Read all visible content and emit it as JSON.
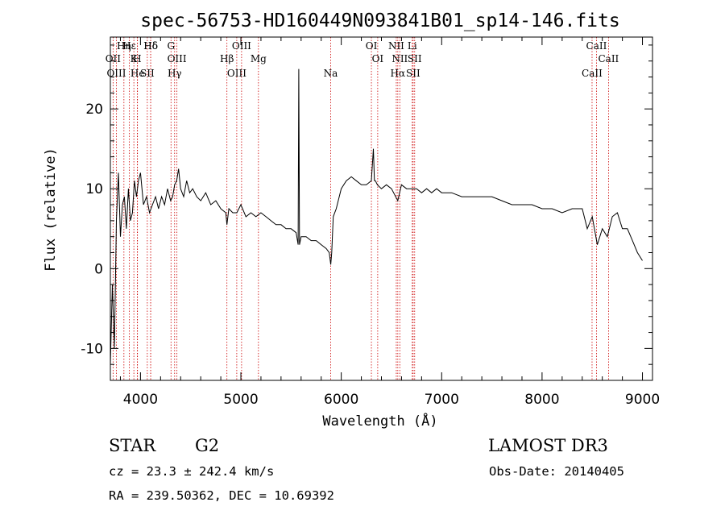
{
  "chart_data": {
    "type": "line",
    "title": "spec-56753-HD160449N093841B01_sp14-146.fits",
    "xlabel": "Wavelength (Å)",
    "ylabel": "Flux (relative)",
    "xlim": [
      3700,
      9100
    ],
    "ylim": [
      -14,
      29
    ],
    "x_ticks": [
      4000,
      5000,
      6000,
      7000,
      8000,
      9000
    ],
    "y_ticks": [
      -10,
      0,
      10,
      20
    ],
    "grid": false,
    "legend": "none",
    "colors": {
      "spectrum": "#000000",
      "line_markers": "#cc0000",
      "axes": "#000000"
    },
    "series": [
      {
        "x": [
          3700,
          3720,
          3740,
          3760,
          3780,
          3800,
          3820,
          3840,
          3860,
          3880,
          3900,
          3920,
          3940,
          3960,
          3980,
          4000,
          4030,
          4060,
          4090,
          4120,
          4150,
          4180,
          4210,
          4240,
          4270,
          4300,
          4320,
          4340,
          4360,
          4380,
          4400,
          4430,
          4460,
          4490,
          4520,
          4560,
          4600,
          4650,
          4700,
          4750,
          4800,
          4850,
          4861,
          4880,
          4920,
          4960,
          5000,
          5050,
          5100,
          5150,
          5200,
          5250,
          5300,
          5350,
          5400,
          5450,
          5500,
          5550,
          5570,
          5577,
          5584,
          5600,
          5650,
          5700,
          5750,
          5800,
          5850,
          5880,
          5895,
          5905,
          5920,
          5950,
          6000,
          6050,
          6100,
          6150,
          6200,
          6250,
          6300,
          6320,
          6330,
          6340,
          6360,
          6400,
          6450,
          6500,
          6563,
          6600,
          6650,
          6700,
          6750,
          6800,
          6850,
          6900,
          6950,
          7000,
          7100,
          7200,
          7300,
          7400,
          7500,
          7600,
          7700,
          7800,
          7900,
          8000,
          8100,
          8200,
          8300,
          8400,
          8450,
          8500,
          8550,
          8600,
          8650,
          8700,
          8750,
          8800,
          8850,
          8900,
          8950,
          9000
        ],
        "y": [
          -12,
          -2,
          -10,
          6,
          12,
          4,
          8,
          9,
          5,
          10,
          6,
          7,
          11,
          9,
          11,
          12,
          8,
          9,
          7,
          8,
          9,
          7.5,
          9,
          8,
          10,
          8.5,
          9,
          10.5,
          11,
          12.5,
          10,
          9,
          11,
          9.5,
          10,
          9,
          8.5,
          9.5,
          8,
          8.5,
          7.5,
          7,
          5.5,
          7.5,
          7,
          7,
          8,
          6.5,
          7,
          6.5,
          7,
          6.5,
          6,
          5.5,
          5.5,
          5,
          5,
          4.5,
          3,
          25,
          3,
          4,
          4,
          3.5,
          3.5,
          3,
          2.5,
          2,
          0.5,
          2,
          6.5,
          7.5,
          10,
          11,
          11.5,
          11,
          10.5,
          10.5,
          11,
          15,
          11,
          11,
          10.5,
          10,
          10.5,
          10,
          8.5,
          10.5,
          10,
          10,
          10,
          9.5,
          10,
          9.5,
          10,
          9.5,
          9.5,
          9,
          9,
          9,
          9,
          8.5,
          8,
          8,
          8,
          7.5,
          7.5,
          7,
          7.5,
          7.5,
          5,
          6.5,
          3,
          5,
          4,
          6.5,
          7,
          5,
          5,
          3.5,
          2,
          1
        ]
      }
    ],
    "line_markers": [
      {
        "label": "Hδ",
        "x": 4102
      },
      {
        "label": "OII",
        "x": 3727
      },
      {
        "label": "OIII",
        "x": 3760
      },
      {
        "label": "Hε",
        "x": 3889
      },
      {
        "label": "K",
        "x": 3934
      },
      {
        "label": "He",
        "x": 3970
      },
      {
        "label": "Hη",
        "x": 3835
      },
      {
        "label": "H",
        "x": 3968
      },
      {
        "label": "SII",
        "x": 4068
      },
      {
        "label": "Hδ",
        "x": 4102
      },
      {
        "label": "OIII",
        "x": 4363
      },
      {
        "label": "Hγ",
        "x": 4340
      },
      {
        "label": "G",
        "x": 4304
      },
      {
        "label": "Hβ",
        "x": 4861
      },
      {
        "label": "OIII",
        "x": 4959
      },
      {
        "label": "OIII",
        "x": 5007
      },
      {
        "label": "Mg",
        "x": 5175
      },
      {
        "label": "Na",
        "x": 5894
      },
      {
        "label": "OI",
        "x": 6300
      },
      {
        "label": "OI",
        "x": 6363
      },
      {
        "label": "Hα",
        "x": 6563
      },
      {
        "label": "NII",
        "x": 6548
      },
      {
        "label": "NII",
        "x": 6583
      },
      {
        "label": "SII",
        "x": 6716
      },
      {
        "label": "Li",
        "x": 6707
      },
      {
        "label": "SII",
        "x": 6731
      },
      {
        "label": "CaII",
        "x": 8498
      },
      {
        "label": "CaII",
        "x": 8542
      },
      {
        "label": "CaII",
        "x": 8662
      }
    ]
  },
  "info": {
    "class_label": "STAR",
    "subclass": "G2",
    "survey": "LAMOST DR3",
    "cz_text": "cz = 23.3 ± 242.4 km/s",
    "obs_date_text": "Obs-Date: 20140405",
    "radec_text": "RA = 239.50362, DEC =  10.69392"
  }
}
